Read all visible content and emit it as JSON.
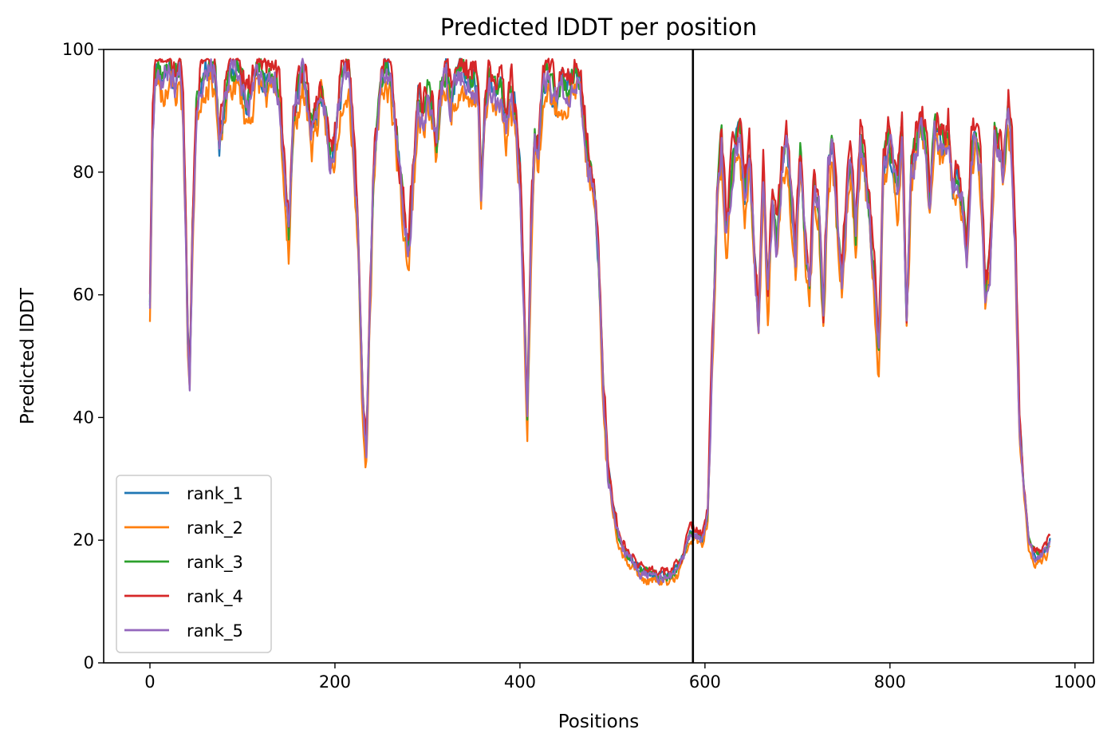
{
  "chart_data": {
    "type": "line",
    "title": "Predicted lDDT per position",
    "xlabel": "Positions",
    "ylabel": "Predicted lDDT",
    "xlim": [
      -50,
      1020
    ],
    "ylim": [
      0,
      100
    ],
    "xticks": [
      0,
      200,
      400,
      600,
      800,
      1000
    ],
    "yticks": [
      0,
      20,
      40,
      60,
      80,
      100
    ],
    "grid": false,
    "legend_position": "lower-left",
    "vline": {
      "x": 587,
      "color": "#000000"
    },
    "x_range": [
      0,
      973
    ],
    "base_profile": [
      [
        0,
        59
      ],
      [
        3,
        88
      ],
      [
        6,
        97
      ],
      [
        9,
        98
      ],
      [
        12,
        96
      ],
      [
        15,
        95
      ],
      [
        18,
        97
      ],
      [
        21,
        98
      ],
      [
        24,
        96
      ],
      [
        27,
        95
      ],
      [
        30,
        96
      ],
      [
        33,
        97
      ],
      [
        36,
        90
      ],
      [
        39,
        70
      ],
      [
        41,
        53
      ],
      [
        43,
        47
      ],
      [
        46,
        70
      ],
      [
        50,
        90
      ],
      [
        55,
        95
      ],
      [
        60,
        97
      ],
      [
        65,
        98
      ],
      [
        70,
        97
      ],
      [
        75,
        85
      ],
      [
        80,
        90
      ],
      [
        85,
        95
      ],
      [
        90,
        97
      ],
      [
        95,
        96
      ],
      [
        100,
        94
      ],
      [
        105,
        90
      ],
      [
        110,
        93
      ],
      [
        115,
        96
      ],
      [
        120,
        97
      ],
      [
        125,
        95
      ],
      [
        130,
        94
      ],
      [
        135,
        96
      ],
      [
        140,
        93
      ],
      [
        145,
        80
      ],
      [
        150,
        70
      ],
      [
        155,
        88
      ],
      [
        160,
        93
      ],
      [
        165,
        96
      ],
      [
        170,
        92
      ],
      [
        175,
        87
      ],
      [
        180,
        90
      ],
      [
        185,
        94
      ],
      [
        190,
        90
      ],
      [
        195,
        82
      ],
      [
        200,
        85
      ],
      [
        205,
        92
      ],
      [
        210,
        97
      ],
      [
        215,
        96
      ],
      [
        220,
        85
      ],
      [
        225,
        70
      ],
      [
        230,
        42
      ],
      [
        234,
        35
      ],
      [
        238,
        60
      ],
      [
        242,
        80
      ],
      [
        246,
        88
      ],
      [
        250,
        95
      ],
      [
        255,
        97
      ],
      [
        260,
        96
      ],
      [
        265,
        88
      ],
      [
        270,
        80
      ],
      [
        275,
        72
      ],
      [
        280,
        67
      ],
      [
        285,
        80
      ],
      [
        290,
        92
      ],
      [
        295,
        89
      ],
      [
        300,
        93
      ],
      [
        305,
        90
      ],
      [
        310,
        84
      ],
      [
        315,
        94
      ],
      [
        320,
        96
      ],
      [
        325,
        92
      ],
      [
        330,
        95
      ],
      [
        335,
        97
      ],
      [
        340,
        96
      ],
      [
        345,
        94
      ],
      [
        350,
        95
      ],
      [
        355,
        93
      ],
      [
        358,
        76
      ],
      [
        362,
        90
      ],
      [
        366,
        95
      ],
      [
        370,
        93
      ],
      [
        375,
        92
      ],
      [
        380,
        94
      ],
      [
        385,
        88
      ],
      [
        390,
        93
      ],
      [
        395,
        90
      ],
      [
        400,
        80
      ],
      [
        404,
        60
      ],
      [
        408,
        40
      ],
      [
        412,
        70
      ],
      [
        416,
        85
      ],
      [
        420,
        83
      ],
      [
        425,
        94
      ],
      [
        430,
        96
      ],
      [
        435,
        93
      ],
      [
        440,
        92
      ],
      [
        445,
        95
      ],
      [
        450,
        93
      ],
      [
        455,
        95
      ],
      [
        460,
        96
      ],
      [
        465,
        95
      ],
      [
        470,
        88
      ],
      [
        475,
        80
      ],
      [
        480,
        76
      ],
      [
        485,
        66
      ],
      [
        490,
        45
      ],
      [
        495,
        32
      ],
      [
        500,
        26
      ],
      [
        505,
        22
      ],
      [
        510,
        19
      ],
      [
        520,
        17
      ],
      [
        530,
        15
      ],
      [
        545,
        14
      ],
      [
        560,
        14
      ],
      [
        570,
        15
      ],
      [
        578,
        18
      ],
      [
        584,
        21
      ],
      [
        590,
        21
      ],
      [
        597,
        20
      ],
      [
        603,
        24
      ],
      [
        608,
        50
      ],
      [
        613,
        75
      ],
      [
        618,
        85
      ],
      [
        623,
        70
      ],
      [
        628,
        78
      ],
      [
        633,
        85
      ],
      [
        638,
        86
      ],
      [
        643,
        75
      ],
      [
        648,
        82
      ],
      [
        653,
        68
      ],
      [
        658,
        55
      ],
      [
        663,
        80
      ],
      [
        668,
        60
      ],
      [
        673,
        75
      ],
      [
        678,
        68
      ],
      [
        683,
        80
      ],
      [
        688,
        85
      ],
      [
        693,
        75
      ],
      [
        698,
        65
      ],
      [
        703,
        82
      ],
      [
        708,
        70
      ],
      [
        713,
        60
      ],
      [
        718,
        78
      ],
      [
        723,
        75
      ],
      [
        728,
        55
      ],
      [
        733,
        80
      ],
      [
        738,
        85
      ],
      [
        743,
        72
      ],
      [
        748,
        62
      ],
      [
        753,
        75
      ],
      [
        758,
        83
      ],
      [
        763,
        70
      ],
      [
        768,
        85
      ],
      [
        773,
        80
      ],
      [
        778,
        72
      ],
      [
        783,
        62
      ],
      [
        788,
        50
      ],
      [
        793,
        80
      ],
      [
        798,
        85
      ],
      [
        803,
        82
      ],
      [
        808,
        75
      ],
      [
        813,
        88
      ],
      [
        818,
        55
      ],
      [
        823,
        80
      ],
      [
        828,
        84
      ],
      [
        833,
        88
      ],
      [
        838,
        86
      ],
      [
        843,
        76
      ],
      [
        848,
        88
      ],
      [
        853,
        85
      ],
      [
        858,
        84
      ],
      [
        863,
        87
      ],
      [
        868,
        78
      ],
      [
        873,
        80
      ],
      [
        878,
        75
      ],
      [
        883,
        68
      ],
      [
        888,
        84
      ],
      [
        893,
        86
      ],
      [
        898,
        80
      ],
      [
        903,
        60
      ],
      [
        908,
        65
      ],
      [
        913,
        86
      ],
      [
        918,
        84
      ],
      [
        923,
        80
      ],
      [
        928,
        90
      ],
      [
        932,
        82
      ],
      [
        936,
        65
      ],
      [
        940,
        38
      ],
      [
        945,
        28
      ],
      [
        950,
        20
      ],
      [
        955,
        18
      ],
      [
        960,
        17
      ],
      [
        965,
        18
      ],
      [
        970,
        19
      ],
      [
        973,
        20
      ]
    ],
    "series": [
      {
        "name": "rank_1",
        "color": "#1f77b4",
        "offset": 0.0,
        "seed": 11,
        "jitter": 3.5
      },
      {
        "name": "rank_2",
        "color": "#ff7f0e",
        "offset": -2.5,
        "seed": 23,
        "jitter": 4.5
      },
      {
        "name": "rank_3",
        "color": "#2ca02c",
        "offset": 0.5,
        "seed": 37,
        "jitter": 3.5
      },
      {
        "name": "rank_4",
        "color": "#d62728",
        "offset": 2.0,
        "seed": 51,
        "jitter": 4.5
      },
      {
        "name": "rank_5",
        "color": "#9467bd",
        "offset": -0.5,
        "seed": 67,
        "jitter": 4.0
      }
    ]
  }
}
